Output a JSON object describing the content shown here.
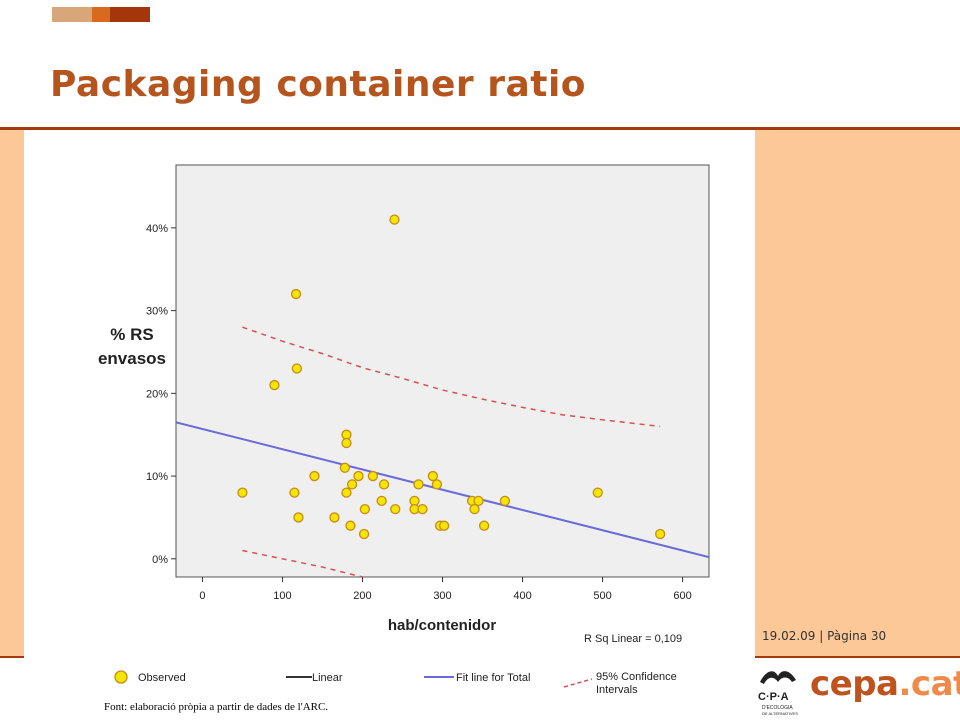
{
  "slide": {
    "title": "Packaging container ratio",
    "footer_date": "19.02.09 | Pàgina 30",
    "source_note": "Font: elaboració pròpia a partir de dades de l'ARC.",
    "logo_main": "cepa",
    "logo_dot": ".cat",
    "logo_emblem_text": "C·P·A",
    "logo_emblem_sub1": "D'ECOLOGIA",
    "logo_emblem_sub2": "DE ALTERNATIVES",
    "colors": {
      "title": "#b5541c",
      "rule": "#a3390f",
      "side_panel": "#fcc898",
      "logo": "#c0521d"
    }
  },
  "chart_data": {
    "type": "scatter",
    "xlabel": "hab/contenidor",
    "ylabel_lines": [
      "% RS",
      "envasos"
    ],
    "xticks": [
      0,
      100,
      200,
      300,
      400,
      500,
      600
    ],
    "yticks": [
      0,
      10,
      20,
      30,
      40
    ],
    "ytick_labels": [
      "0%",
      "10%",
      "20%",
      "30%",
      "40%"
    ],
    "xlim": [
      -33,
      633
    ],
    "ylim": [
      -2.2,
      47.6
    ],
    "grid": false,
    "annotation": "R Sq Linear = 0,109",
    "legend_position": "bottom",
    "legend": [
      {
        "label": "Observed",
        "kind": "marker",
        "color": "#f3e600"
      },
      {
        "label": "Linear",
        "kind": "line",
        "color": "#333333"
      },
      {
        "label": "Fit line for Total",
        "kind": "line",
        "color": "#6a6ad8"
      },
      {
        "label": "95% Confidence Intervals",
        "label_lines": [
          "95% Confidence",
          "Intervals"
        ],
        "kind": "dashed",
        "color": "#d65050"
      }
    ],
    "points": [
      {
        "x": 50,
        "y": 8
      },
      {
        "x": 90,
        "y": 21
      },
      {
        "x": 115,
        "y": 8
      },
      {
        "x": 117,
        "y": 32
      },
      {
        "x": 118,
        "y": 23
      },
      {
        "x": 120,
        "y": 5
      },
      {
        "x": 140,
        "y": 10
      },
      {
        "x": 165,
        "y": 5
      },
      {
        "x": 178,
        "y": 11
      },
      {
        "x": 180,
        "y": 15
      },
      {
        "x": 180,
        "y": 14
      },
      {
        "x": 180,
        "y": 8
      },
      {
        "x": 185,
        "y": 4
      },
      {
        "x": 187,
        "y": 9
      },
      {
        "x": 195,
        "y": 10
      },
      {
        "x": 202,
        "y": 3
      },
      {
        "x": 203,
        "y": 6
      },
      {
        "x": 213,
        "y": 10
      },
      {
        "x": 224,
        "y": 7
      },
      {
        "x": 227,
        "y": 9
      },
      {
        "x": 240,
        "y": 41
      },
      {
        "x": 241,
        "y": 6
      },
      {
        "x": 265,
        "y": 7
      },
      {
        "x": 265,
        "y": 6
      },
      {
        "x": 270,
        "y": 9
      },
      {
        "x": 275,
        "y": 6
      },
      {
        "x": 288,
        "y": 10
      },
      {
        "x": 293,
        "y": 9
      },
      {
        "x": 297,
        "y": 4
      },
      {
        "x": 302,
        "y": 4
      },
      {
        "x": 337,
        "y": 7
      },
      {
        "x": 340,
        "y": 6
      },
      {
        "x": 345,
        "y": 7
      },
      {
        "x": 352,
        "y": 4
      },
      {
        "x": 378,
        "y": 7
      },
      {
        "x": 494,
        "y": 8
      },
      {
        "x": 572,
        "y": 3
      }
    ],
    "fit_line": {
      "x": [
        -33,
        633
      ],
      "y": [
        16.5,
        0.2
      ]
    },
    "ci_upper": {
      "x": [
        50,
        100,
        150,
        200,
        250,
        300,
        350,
        400,
        450,
        500,
        572
      ],
      "y": [
        28,
        26.3,
        24.8,
        23.1,
        21.8,
        20.4,
        19.3,
        18.3,
        17.4,
        16.8,
        16
      ]
    },
    "ci_lower": {
      "x": [
        50,
        100,
        150,
        200
      ],
      "y": [
        1,
        0,
        -1,
        -2.2
      ]
    }
  }
}
